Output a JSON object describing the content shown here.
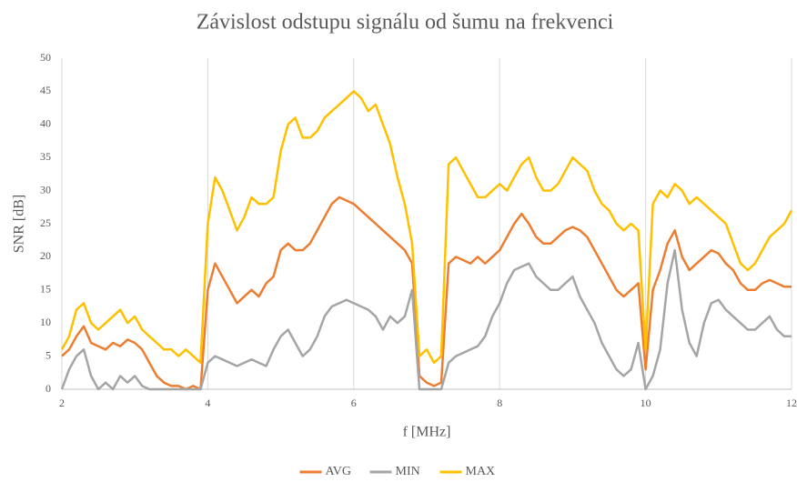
{
  "chart_data": {
    "type": "line",
    "title": "Závislost odstupu signálu od šumu na frekvenci",
    "x_label": "f [MHz]",
    "y_label": "SNR [dB]",
    "x": [
      2,
      2.1,
      2.2,
      2.3,
      2.4,
      2.5,
      2.6,
      2.7,
      2.8,
      2.9,
      3,
      3.1,
      3.2,
      3.3,
      3.4,
      3.5,
      3.6,
      3.7,
      3.8,
      3.9,
      4,
      4.1,
      4.2,
      4.3,
      4.4,
      4.5,
      4.6,
      4.7,
      4.8,
      4.9,
      5,
      5.1,
      5.2,
      5.3,
      5.4,
      5.5,
      5.6,
      5.7,
      5.8,
      5.9,
      6,
      6.1,
      6.2,
      6.3,
      6.4,
      6.5,
      6.6,
      6.7,
      6.8,
      6.9,
      7,
      7.1,
      7.2,
      7.3,
      7.4,
      7.5,
      7.6,
      7.7,
      7.8,
      7.9,
      8,
      8.1,
      8.2,
      8.3,
      8.4,
      8.5,
      8.6,
      8.7,
      8.8,
      8.9,
      9,
      9.1,
      9.2,
      9.3,
      9.4,
      9.5,
      9.6,
      9.7,
      9.8,
      9.9,
      10,
      10.1,
      10.2,
      10.3,
      10.4,
      10.5,
      10.6,
      10.7,
      10.8,
      10.9,
      11,
      11.1,
      11.2,
      11.3,
      11.4,
      11.5,
      11.6,
      11.7,
      11.8,
      11.9,
      12
    ],
    "series": [
      {
        "name": "AVG",
        "color": "#ed7d31",
        "values": [
          5,
          6,
          8,
          9.5,
          7,
          6.5,
          6,
          7,
          6.5,
          7.5,
          7,
          6,
          4,
          2,
          1,
          0.5,
          0.5,
          0,
          0.5,
          0,
          15,
          19,
          17,
          15,
          13,
          14,
          15,
          14,
          16,
          17,
          21,
          22,
          21,
          21,
          22,
          24,
          26,
          28,
          29,
          28.5,
          28,
          27,
          26,
          25,
          24,
          23,
          22,
          21,
          19,
          2,
          1,
          0.5,
          1,
          19,
          20,
          19.5,
          19,
          20,
          19,
          20,
          21,
          23,
          25,
          26.5,
          25,
          23,
          22,
          22,
          23,
          24,
          24.5,
          24,
          23,
          21,
          19,
          17,
          15,
          14,
          15,
          16,
          3,
          15,
          18,
          22,
          24,
          20,
          18,
          19,
          20,
          21,
          20.5,
          19,
          18,
          16,
          15,
          15,
          16,
          16.5,
          16,
          15.5,
          15.5
        ]
      },
      {
        "name": "MIN",
        "color": "#a5a5a5",
        "values": [
          0,
          3,
          5,
          6,
          2,
          0,
          1,
          0,
          2,
          1,
          2,
          0.5,
          0,
          0,
          0,
          0,
          0,
          0,
          0,
          0,
          4,
          5,
          4.5,
          4,
          3.5,
          4,
          4.5,
          4,
          3.5,
          6,
          8,
          9,
          7,
          5,
          6,
          8,
          11,
          12.5,
          13,
          13.5,
          13,
          12.5,
          12,
          11,
          9,
          11,
          10,
          11,
          15,
          0,
          0,
          0,
          0,
          4,
          5,
          5.5,
          6,
          6.5,
          8,
          11,
          13,
          16,
          18,
          18.5,
          19,
          17,
          16,
          15,
          15,
          16,
          17,
          14,
          12,
          10,
          7,
          5,
          3,
          2,
          3,
          7,
          0,
          2,
          6,
          16,
          21,
          12,
          7,
          5,
          10,
          13,
          13.5,
          12,
          11,
          10,
          9,
          9,
          10,
          11,
          9,
          8,
          8
        ]
      },
      {
        "name": "MAX",
        "color": "#ffc000",
        "values": [
          6,
          8,
          12,
          13,
          10,
          9,
          10,
          11,
          12,
          10,
          11,
          9,
          8,
          7,
          6,
          6,
          5,
          6,
          5,
          4,
          25,
          32,
          30,
          27,
          24,
          26,
          29,
          28,
          28,
          29,
          36,
          40,
          41,
          38,
          38,
          39,
          41,
          42,
          43,
          44,
          45,
          44,
          42,
          43,
          40,
          37,
          32,
          28,
          22,
          5,
          6,
          4,
          5,
          34,
          35,
          33,
          31,
          29,
          29,
          30,
          31,
          30,
          32,
          34,
          35,
          32,
          30,
          30,
          31,
          33,
          35,
          34,
          33,
          30,
          28,
          27,
          25,
          24,
          25,
          24,
          6,
          28,
          30,
          29,
          31,
          30,
          28,
          29,
          28,
          27,
          26,
          25,
          22,
          19,
          18,
          19,
          21,
          23,
          24,
          25,
          27
        ]
      }
    ],
    "xlim": [
      2,
      12
    ],
    "xticks": [
      2,
      4,
      6,
      8,
      10,
      12
    ],
    "ylim": [
      0,
      50
    ],
    "yticks": [
      0,
      5,
      10,
      15,
      20,
      25,
      30,
      35,
      40,
      45,
      50
    ],
    "grid": "x",
    "legend": "bottom"
  }
}
